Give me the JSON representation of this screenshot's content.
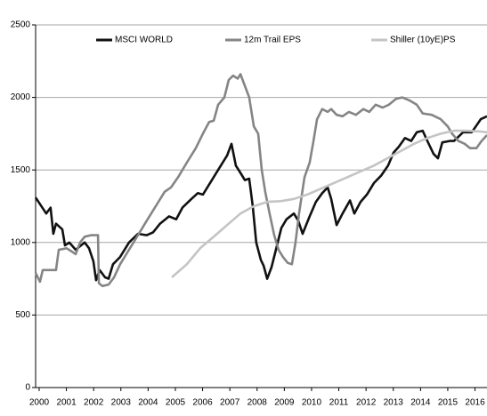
{
  "chart_data": {
    "type": "line",
    "xlim": [
      1999.87,
      2016.44
    ],
    "xticks": [
      2000,
      2001,
      2002,
      2003,
      2004,
      2005,
      2006,
      2007,
      2008,
      2009,
      2010,
      2011,
      2012,
      2013,
      2014,
      2015,
      2016
    ],
    "ylim": [
      0,
      2500
    ],
    "yticks": [
      0,
      500,
      1000,
      1500,
      2000,
      2500
    ],
    "grid": true,
    "legend": "top",
    "series": [
      {
        "name": "MSCI WORLD",
        "color": "#111111",
        "x": [
          1999.87,
          2000.26,
          2000.42,
          2000.52,
          2000.62,
          2000.85,
          2000.95,
          2001.11,
          2001.34,
          2001.67,
          2001.83,
          2001.99,
          2002.09,
          2002.22,
          2002.42,
          2002.55,
          2002.71,
          2002.97,
          2003.3,
          2003.63,
          2003.95,
          2004.18,
          2004.44,
          2004.77,
          2005.03,
          2005.26,
          2005.59,
          2005.82,
          2006.01,
          2006.34,
          2006.57,
          2006.9,
          2007.06,
          2007.22,
          2007.39,
          2007.55,
          2007.71,
          2007.84,
          2007.97,
          2008.14,
          2008.24,
          2008.37,
          2008.53,
          2008.69,
          2008.89,
          2009.08,
          2009.35,
          2009.51,
          2009.67,
          2009.93,
          2010.16,
          2010.39,
          2010.59,
          2010.72,
          2010.92,
          2011.14,
          2011.41,
          2011.57,
          2011.8,
          2012.03,
          2012.29,
          2012.55,
          2012.81,
          2013.01,
          2013.2,
          2013.43,
          2013.66,
          2013.86,
          2014.08,
          2014.25,
          2014.48,
          2014.64,
          2014.8,
          2015.07,
          2015.23,
          2015.56,
          2015.88,
          2016.21,
          2016.44
        ],
        "values": [
          1310,
          1200,
          1240,
          1060,
          1130,
          1090,
          980,
          1000,
          950,
          1000,
          960,
          870,
          740,
          810,
          760,
          750,
          850,
          900,
          1000,
          1060,
          1050,
          1070,
          1130,
          1180,
          1160,
          1240,
          1300,
          1340,
          1330,
          1430,
          1500,
          1600,
          1680,
          1530,
          1480,
          1430,
          1440,
          1250,
          1000,
          880,
          840,
          750,
          830,
          950,
          1100,
          1160,
          1200,
          1150,
          1060,
          1180,
          1280,
          1340,
          1380,
          1300,
          1120,
          1200,
          1290,
          1200,
          1280,
          1330,
          1410,
          1460,
          1530,
          1620,
          1660,
          1720,
          1700,
          1760,
          1770,
          1700,
          1610,
          1580,
          1690,
          1700,
          1700,
          1760,
          1760,
          1850,
          1870
        ]
      },
      {
        "name": "12m Trail EPS",
        "color": "#858585",
        "x": [
          1999.87,
          2000.03,
          2000.13,
          2000.36,
          2000.62,
          2000.72,
          2001.01,
          2001.18,
          2001.34,
          2001.5,
          2001.67,
          2001.9,
          2002.16,
          2002.19,
          2002.32,
          2002.55,
          2002.75,
          2002.97,
          2003.3,
          2003.63,
          2003.95,
          2004.28,
          2004.61,
          2004.84,
          2005.1,
          2005.42,
          2005.75,
          2006.01,
          2006.24,
          2006.41,
          2006.57,
          2006.8,
          2006.96,
          2007.12,
          2007.29,
          2007.39,
          2007.55,
          2007.71,
          2007.88,
          2008.04,
          2008.17,
          2008.3,
          2008.46,
          2008.63,
          2008.79,
          2008.95,
          2009.12,
          2009.28,
          2009.41,
          2009.54,
          2009.74,
          2009.93,
          2010.07,
          2010.2,
          2010.39,
          2010.59,
          2010.72,
          2010.92,
          2011.14,
          2011.37,
          2011.63,
          2011.9,
          2012.12,
          2012.35,
          2012.61,
          2012.84,
          2013.1,
          2013.33,
          2013.59,
          2013.86,
          2014.08,
          2014.41,
          2014.74,
          2015.0,
          2015.16,
          2015.39,
          2015.62,
          2015.82,
          2016.05,
          2016.24,
          2016.44
        ],
        "values": [
          790,
          730,
          810,
          810,
          810,
          950,
          960,
          940,
          920,
          1000,
          1040,
          1050,
          1050,
          720,
          700,
          710,
          760,
          850,
          950,
          1050,
          1150,
          1250,
          1350,
          1380,
          1450,
          1550,
          1650,
          1750,
          1830,
          1840,
          1950,
          2000,
          2120,
          2150,
          2130,
          2160,
          2080,
          2000,
          1800,
          1750,
          1500,
          1350,
          1200,
          1050,
          950,
          900,
          860,
          850,
          1000,
          1200,
          1450,
          1550,
          1700,
          1850,
          1920,
          1900,
          1920,
          1880,
          1870,
          1900,
          1880,
          1920,
          1900,
          1950,
          1930,
          1950,
          1990,
          2000,
          1980,
          1950,
          1890,
          1880,
          1850,
          1800,
          1750,
          1700,
          1680,
          1650,
          1650,
          1700,
          1740
        ]
      },
      {
        "name": "Shiller (10yE)PS",
        "color": "#c4c4c4",
        "x": [
          2004.87,
          2005.42,
          2005.91,
          2006.41,
          2006.9,
          2007.39,
          2007.88,
          2008.37,
          2008.86,
          2009.35,
          2009.84,
          2010.33,
          2010.82,
          2011.31,
          2011.8,
          2012.29,
          2012.78,
          2013.27,
          2013.76,
          2014.25,
          2014.74,
          2015.23,
          2015.72,
          2016.21,
          2016.44
        ],
        "values": [
          760,
          850,
          960,
          1040,
          1120,
          1200,
          1250,
          1280,
          1285,
          1300,
          1330,
          1370,
          1410,
          1450,
          1490,
          1530,
          1580,
          1630,
          1680,
          1720,
          1750,
          1770,
          1770,
          1765,
          1760
        ]
      }
    ]
  }
}
